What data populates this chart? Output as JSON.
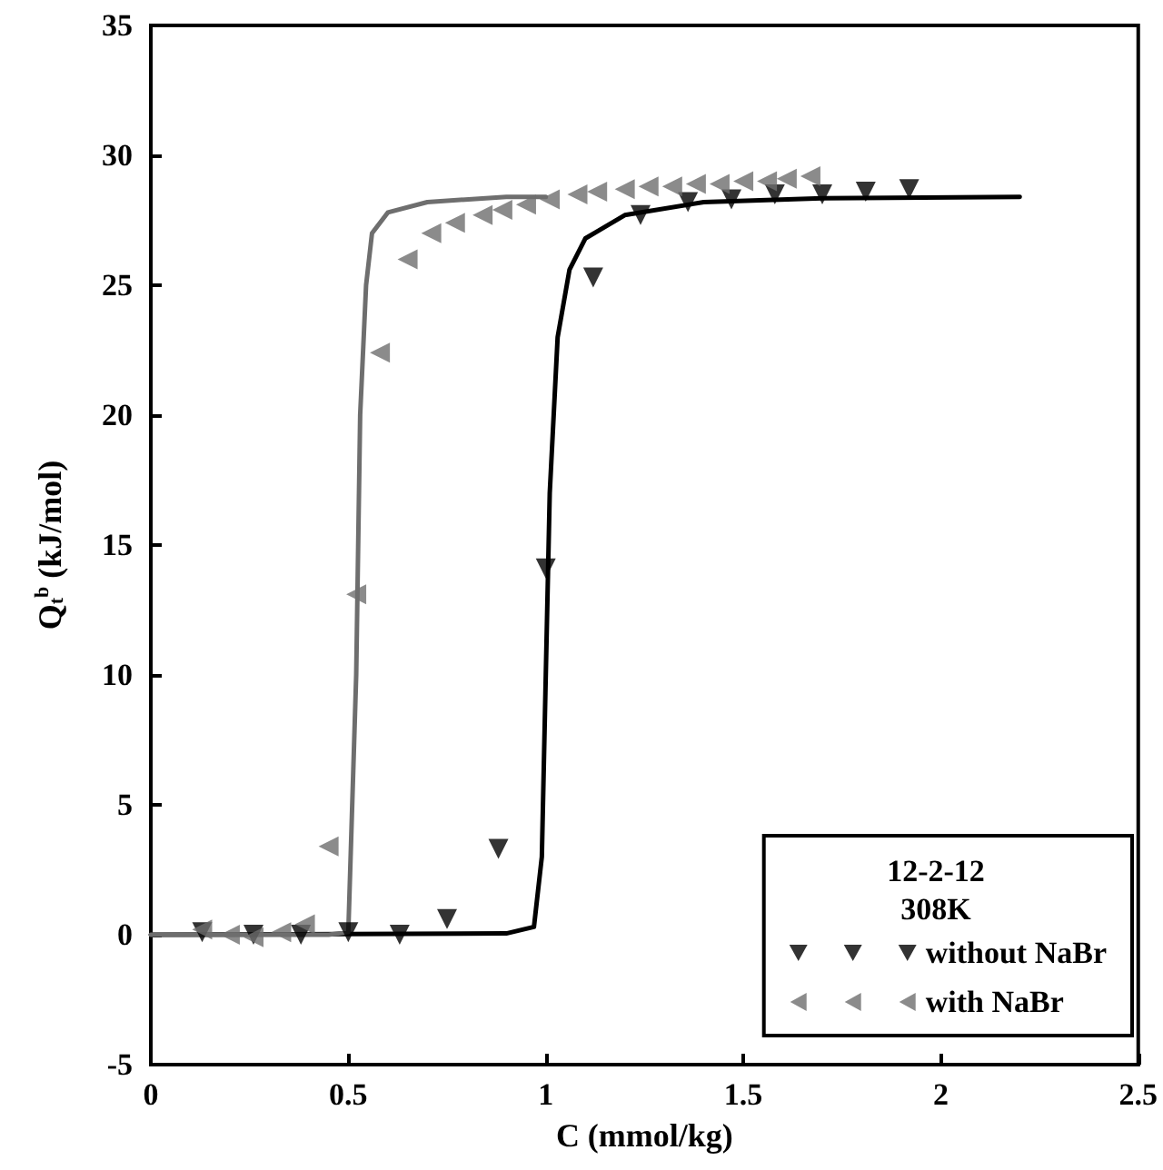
{
  "chart_data": {
    "type": "scatter",
    "xlabel": "C (mmol/kg)",
    "ylabel": "Q$_{t}$$^{b}$ (kJ/mol)",
    "legend_title": "12-2-12\n308K",
    "xlim": [
      0,
      2.5
    ],
    "xticks": [
      0,
      0.5,
      1,
      1.5,
      2,
      2.5
    ],
    "ylim": [
      -5,
      35
    ],
    "yticks": [
      -5,
      0,
      5,
      10,
      15,
      20,
      25,
      30,
      35
    ],
    "grid": false,
    "legend": "bottom right",
    "series": [
      {
        "name": "without NaBr",
        "color": "#000000",
        "marker": "triangle",
        "x": [
          0.13,
          0.26,
          0.38,
          0.5,
          0.63,
          0.75,
          0.88,
          1.0,
          1.12,
          1.24,
          1.36,
          1.47,
          1.58,
          1.7,
          1.81,
          1.92
        ],
        "values": [
          0.1,
          0,
          0,
          0.1,
          0,
          0.6,
          3.3,
          14.1,
          25.3,
          27.7,
          28.2,
          28.3,
          28.5,
          28.5,
          28.6,
          28.7
        ]
      },
      {
        "name": "with NaBr",
        "color": "#6e6e6e",
        "marker": "triangle",
        "x": [
          0.13,
          0.2,
          0.26,
          0.33,
          0.39,
          0.45,
          0.52,
          0.58,
          0.65,
          0.71,
          0.77,
          0.84,
          0.89,
          0.95,
          1.01,
          1.08,
          1.13,
          1.2,
          1.26,
          1.32,
          1.38,
          1.44,
          1.5,
          1.56,
          1.61,
          1.67
        ],
        "values": [
          0.2,
          0,
          -0.1,
          0.1,
          0.4,
          3.4,
          13.1,
          22.4,
          26.0,
          27.0,
          27.4,
          27.7,
          27.9,
          28.1,
          28.3,
          28.5,
          28.6,
          28.7,
          28.8,
          28.8,
          28.9,
          28.9,
          29.0,
          29.0,
          29.1,
          29.2
        ]
      },
      {
        "type": "line",
        "color": "#000000",
        "marker": "none",
        "x": [
          0,
          0.9,
          0.97,
          0.99,
          1.0,
          1.01,
          1.03,
          1.06,
          1.1,
          1.2,
          1.4,
          1.7,
          2.2
        ],
        "values": [
          0,
          0.05,
          0.3,
          3,
          10,
          17,
          23,
          25.6,
          26.8,
          27.7,
          28.2,
          28.35,
          28.4
        ]
      },
      {
        "type": "line",
        "color": "#6e6e6e",
        "marker": "none",
        "x": [
          0,
          0.45,
          0.5,
          0.52,
          0.53,
          0.545,
          0.56,
          0.6,
          0.7,
          0.9,
          1.0
        ],
        "values": [
          0,
          0,
          0.1,
          10,
          20,
          25,
          27,
          27.8,
          28.2,
          28.4,
          28.4
        ]
      }
    ]
  }
}
